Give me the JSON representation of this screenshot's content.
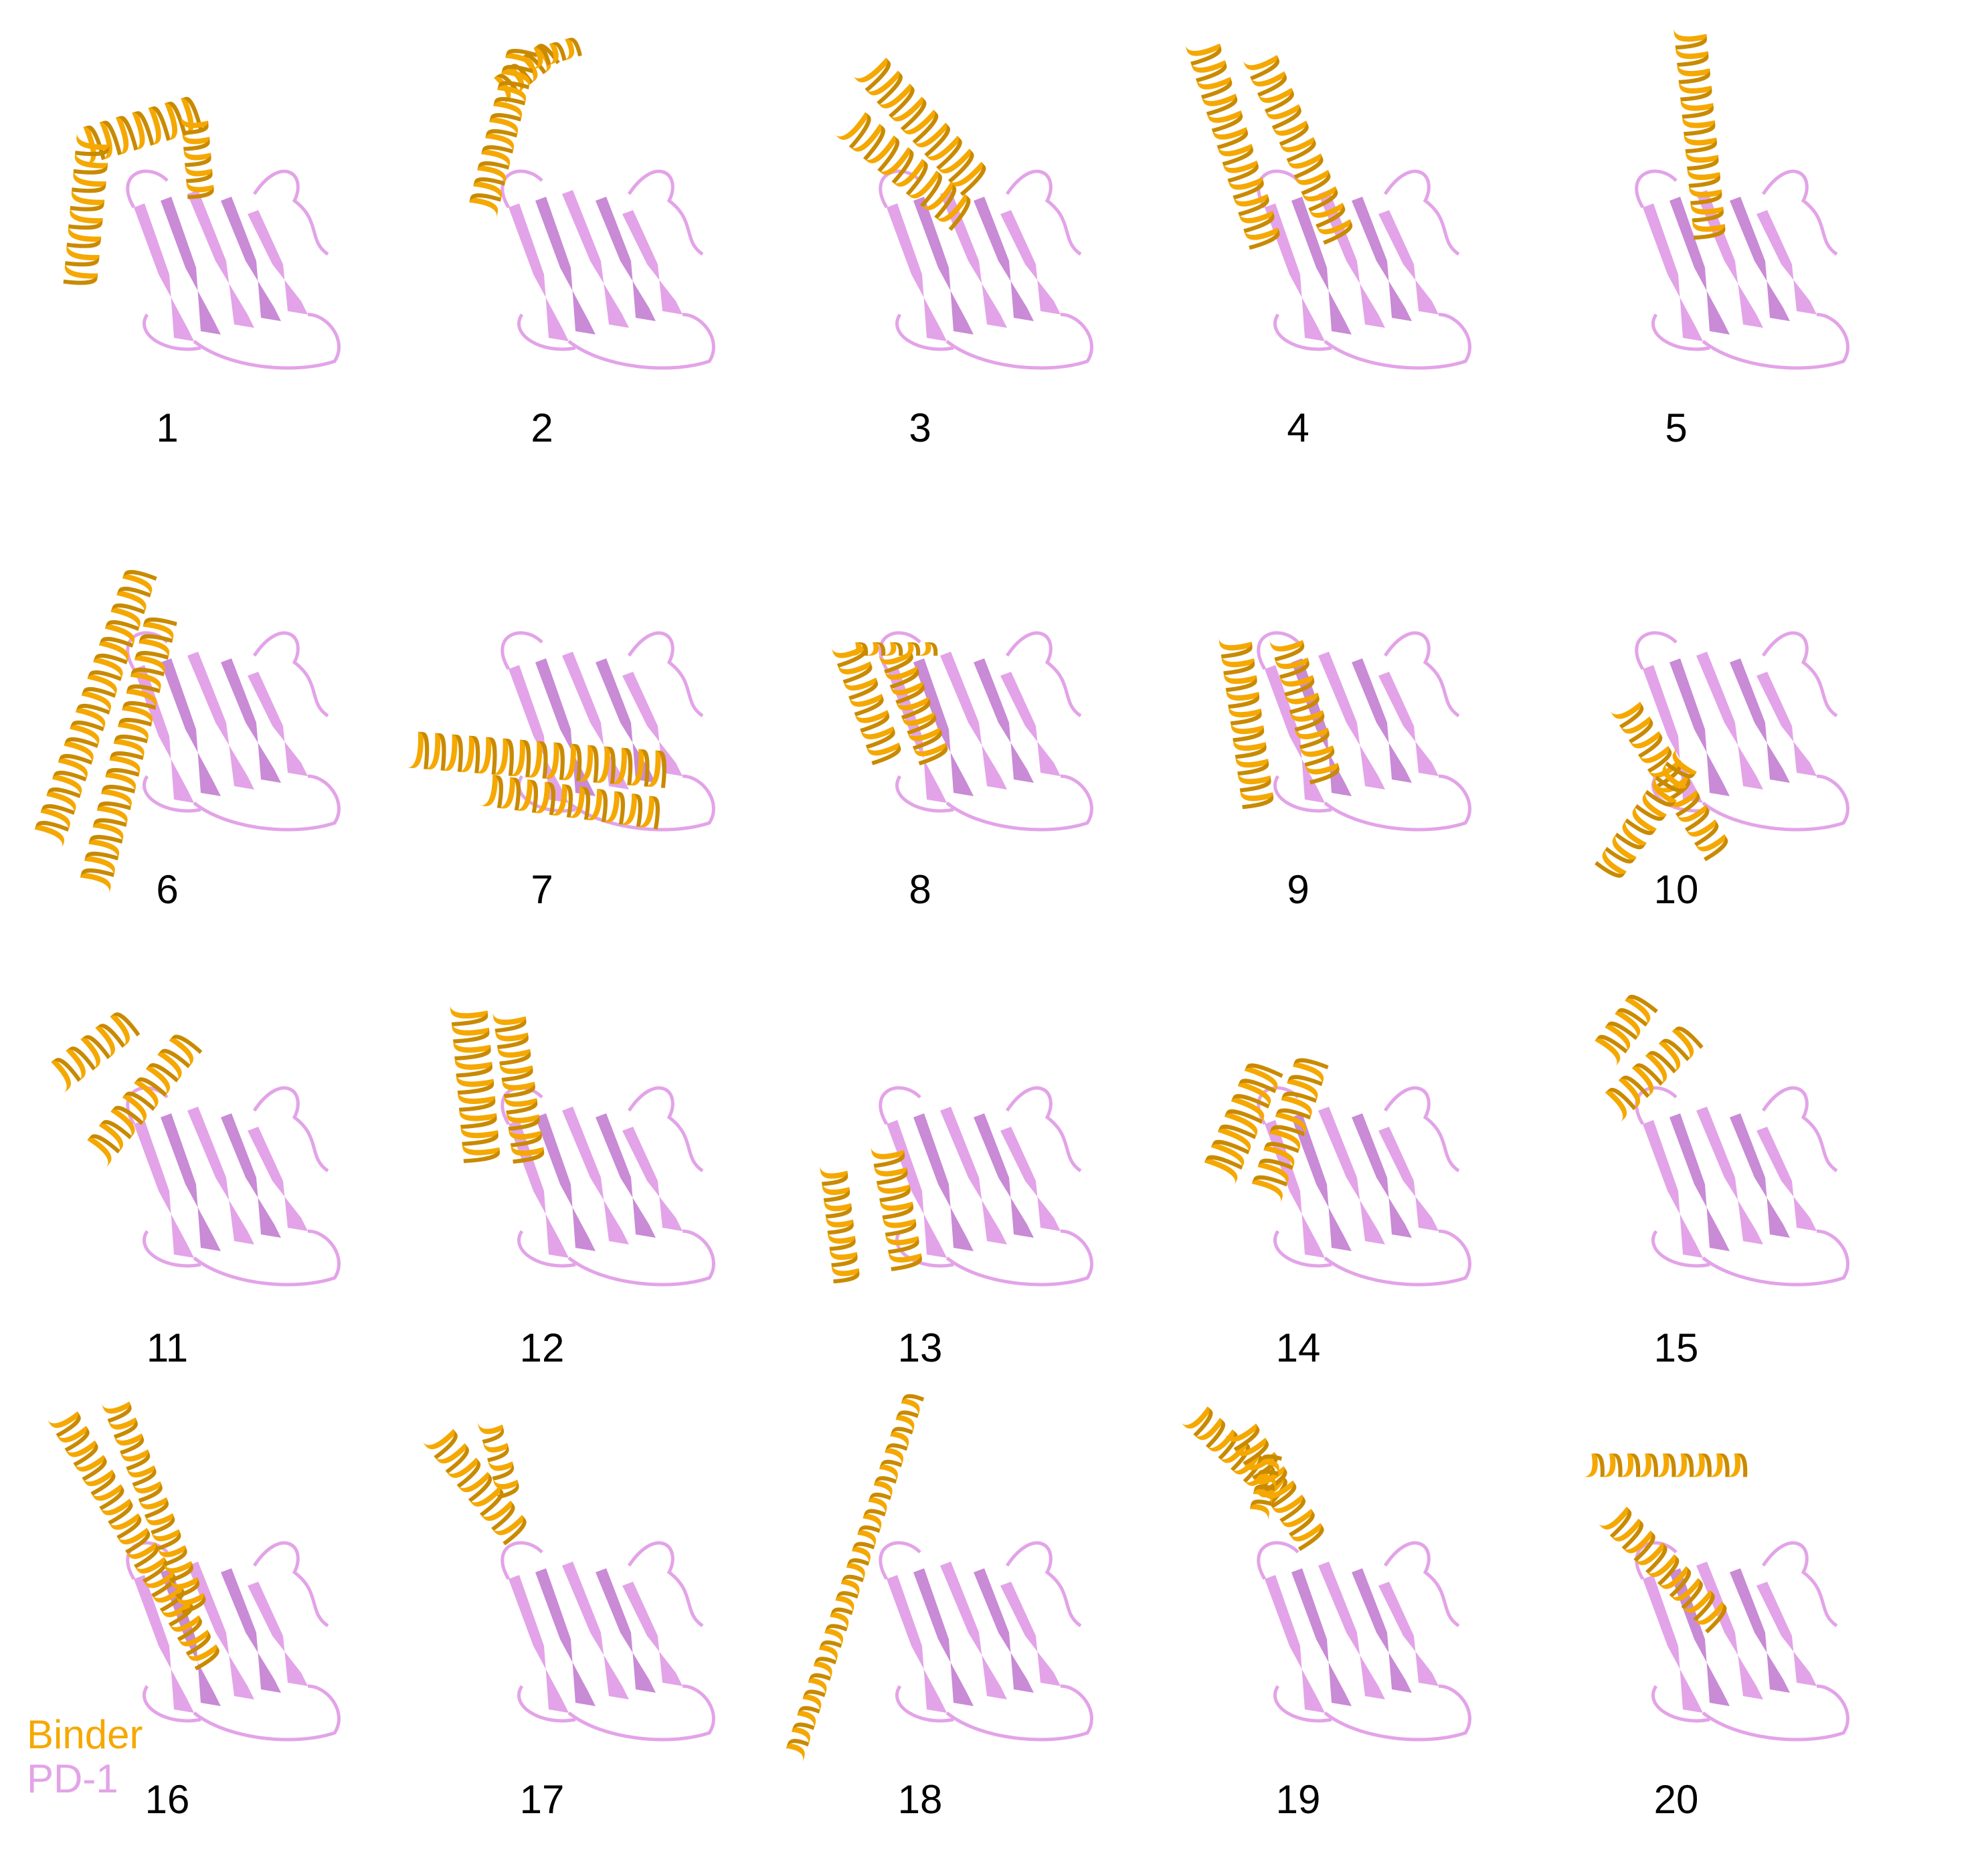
{
  "colors": {
    "binder": "#F5A800",
    "binder_dark": "#C98A00",
    "pd1": "#E3A3E8",
    "pd1_dark": "#C98AD6",
    "label": "#000000"
  },
  "legend": {
    "binder_label": "Binder",
    "pd1_label": "PD-1"
  },
  "panels": [
    {
      "label": "1"
    },
    {
      "label": "2"
    },
    {
      "label": "3"
    },
    {
      "label": "4"
    },
    {
      "label": "5"
    },
    {
      "label": "6"
    },
    {
      "label": "7"
    },
    {
      "label": "8"
    },
    {
      "label": "9"
    },
    {
      "label": "10"
    },
    {
      "label": "11"
    },
    {
      "label": "12"
    },
    {
      "label": "13"
    },
    {
      "label": "14"
    },
    {
      "label": "15"
    },
    {
      "label": "16"
    },
    {
      "label": "17"
    },
    {
      "label": "18"
    },
    {
      "label": "19"
    },
    {
      "label": "20"
    }
  ]
}
